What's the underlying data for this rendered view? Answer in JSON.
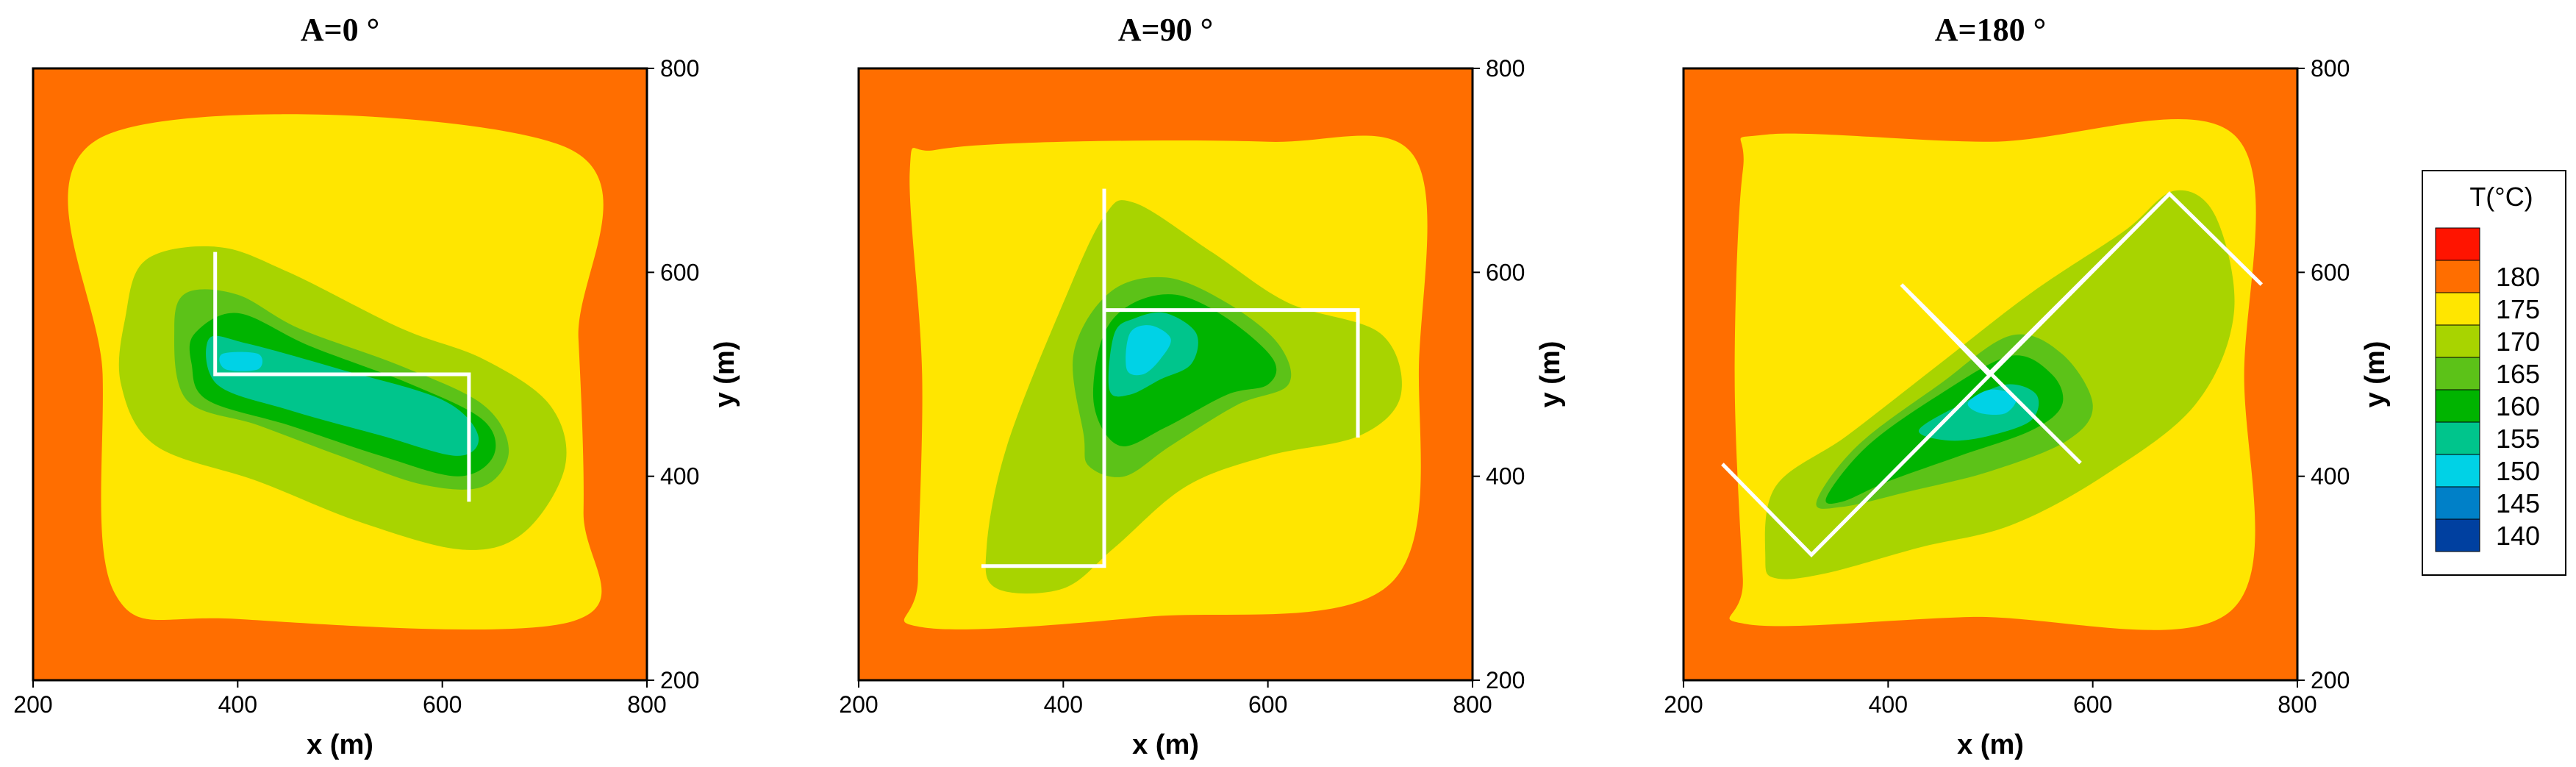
{
  "chart_data": [
    {
      "type": "heatmap",
      "subtype": "filled-contour",
      "title": "A=0 °",
      "xlabel": "x (m)",
      "ylabel": "y (m)",
      "xlim": [
        200,
        800
      ],
      "ylim": [
        200,
        800
      ],
      "x_ticks": [
        "200",
        "400",
        "600",
        "800"
      ],
      "y_ticks": [
        "200",
        "400",
        "600",
        "800"
      ],
      "y_axis_side": "right",
      "background_level": "175-180",
      "contours": [
        {
          "level": "170-175",
          "color": "#FFE600",
          "points": [
            [
              268,
              733
            ],
            [
              720,
              723
            ],
            [
              733,
              535
            ],
            [
              738,
              365
            ],
            [
              728,
              258
            ],
            [
              400,
              260
            ],
            [
              280,
              285
            ],
            [
              268,
              500
            ]
          ]
        },
        {
          "level": "165-170",
          "color": "#A8D400",
          "points": [
            [
              290,
              555
            ],
            [
              310,
              612
            ],
            [
              380,
              625
            ],
            [
              450,
              600
            ],
            [
              560,
              545
            ],
            [
              640,
              515
            ],
            [
              705,
              470
            ],
            [
              720,
              410
            ],
            [
              680,
              345
            ],
            [
              620,
              328
            ],
            [
              520,
              355
            ],
            [
              420,
              395
            ],
            [
              320,
              430
            ],
            [
              286,
              490
            ]
          ]
        },
        {
          "level": "160-165",
          "color": "#5CC218",
          "points": [
            [
              338,
              545
            ],
            [
              350,
              580
            ],
            [
              400,
              578
            ],
            [
              460,
              545
            ],
            [
              560,
              508
            ],
            [
              640,
              470
            ],
            [
              665,
              425
            ],
            [
              640,
              390
            ],
            [
              580,
              392
            ],
            [
              500,
              420
            ],
            [
              420,
              450
            ],
            [
              350,
              475
            ]
          ]
        },
        {
          "level": "155-160",
          "color": "#00B400",
          "points": [
            [
              358,
              540
            ],
            [
              400,
              560
            ],
            [
              470,
              528
            ],
            [
              570,
              490
            ],
            [
              640,
              455
            ],
            [
              650,
              420
            ],
            [
              615,
              400
            ],
            [
              540,
              420
            ],
            [
              450,
              450
            ],
            [
              370,
              475
            ],
            [
              355,
              510
            ]
          ]
        },
        {
          "level": "150-155",
          "color": "#00C58C",
          "points": [
            [
              372,
              535
            ],
            [
              410,
              530
            ],
            [
              500,
              505
            ],
            [
              600,
              475
            ],
            [
              635,
              440
            ],
            [
              615,
              420
            ],
            [
              540,
              440
            ],
            [
              450,
              465
            ],
            [
              380,
              490
            ]
          ]
        },
        {
          "level": "145-150",
          "color": "#00D2E6",
          "points": [
            [
              385,
              520
            ],
            [
              420,
              520
            ],
            [
              420,
              505
            ],
            [
              388,
              505
            ]
          ]
        }
      ],
      "well_path": [
        [
          378,
          620
        ],
        [
          378,
          500
        ],
        [
          626,
          500
        ],
        [
          626,
          375
        ]
      ],
      "well_color": "#ffffff"
    },
    {
      "type": "heatmap",
      "subtype": "filled-contour",
      "title": "A=90 °",
      "xlabel": "x (m)",
      "ylabel": "y (m)",
      "xlim": [
        200,
        800
      ],
      "ylim": [
        200,
        800
      ],
      "x_ticks": [
        "200",
        "400",
        "600",
        "800"
      ],
      "y_ticks": [
        "200",
        "400",
        "600",
        "800"
      ],
      "y_axis_side": "right",
      "background_level": "175-180",
      "contours": [
        {
          "level": "170-175",
          "color": "#FFE600",
          "points": [
            [
              275,
              720
            ],
            [
              250,
              700
            ],
            [
              262,
              500
            ],
            [
              258,
              300
            ],
            [
              262,
              252
            ],
            [
              480,
              262
            ],
            [
              720,
              295
            ],
            [
              748,
              520
            ],
            [
              742,
              715
            ],
            [
              600,
              728
            ],
            [
              400,
              728
            ]
          ]
        },
        {
          "level": "165-170",
          "color": "#A8D400",
          "points": [
            [
              335,
              290
            ],
            [
              325,
              330
            ],
            [
              345,
              430
            ],
            [
              400,
              570
            ],
            [
              440,
              655
            ],
            [
              470,
              668
            ],
            [
              545,
              620
            ],
            [
              620,
              570
            ],
            [
              710,
              540
            ],
            [
              730,
              480
            ],
            [
              690,
              440
            ],
            [
              600,
              420
            ],
            [
              520,
              390
            ],
            [
              450,
              330
            ],
            [
              400,
              290
            ]
          ]
        },
        {
          "level": "160-165",
          "color": "#5CC218",
          "points": [
            [
              420,
              440
            ],
            [
              410,
              520
            ],
            [
              445,
              580
            ],
            [
              500,
              595
            ],
            [
              560,
              570
            ],
            [
              610,
              530
            ],
            [
              620,
              490
            ],
            [
              570,
              470
            ],
            [
              505,
              430
            ],
            [
              460,
              400
            ],
            [
              425,
              410
            ]
          ]
        },
        {
          "level": "155-160",
          "color": "#00B400",
          "points": [
            [
              430,
              470
            ],
            [
              438,
              535
            ],
            [
              465,
              568
            ],
            [
              510,
              578
            ],
            [
              560,
              555
            ],
            [
              605,
              515
            ],
            [
              600,
              490
            ],
            [
              560,
              480
            ],
            [
              500,
              448
            ],
            [
              455,
              430
            ]
          ]
        },
        {
          "level": "150-155",
          "color": "#00C58C",
          "points": [
            [
              445,
              485
            ],
            [
              450,
              540
            ],
            [
              470,
              555
            ],
            [
              500,
              560
            ],
            [
              530,
              540
            ],
            [
              525,
              510
            ],
            [
              495,
              495
            ],
            [
              465,
              480
            ]
          ]
        },
        {
          "level": "145-150",
          "color": "#00D2E6",
          "points": [
            [
              462,
              505
            ],
            [
              465,
              540
            ],
            [
              485,
              548
            ],
            [
              505,
              535
            ],
            [
              495,
              515
            ],
            [
              478,
              500
            ]
          ]
        }
      ],
      "well_path": [
        [
          320,
          312
        ],
        [
          440,
          312
        ],
        [
          440,
          682
        ],
        [
          440,
          563
        ],
        [
          688,
          563
        ],
        [
          688,
          438
        ]
      ],
      "well_color": "#ffffff"
    },
    {
      "type": "heatmap",
      "subtype": "filled-contour",
      "title": "A=180 °",
      "xlabel": "x (m)",
      "ylabel": "y (m)",
      "xlim": [
        200,
        800
      ],
      "ylim": [
        200,
        800
      ],
      "x_ticks": [
        "200",
        "400",
        "600",
        "800"
      ],
      "y_ticks": [
        "200",
        "400",
        "600",
        "800"
      ],
      "y_axis_side": "right",
      "background_level": "175-180",
      "contours": [
        {
          "level": "170-175",
          "color": "#FFE600",
          "points": [
            [
              280,
              735
            ],
            [
              258,
              700
            ],
            [
              250,
              500
            ],
            [
              258,
              300
            ],
            [
              262,
              255
            ],
            [
              480,
              262
            ],
            [
              735,
              268
            ],
            [
              748,
              500
            ],
            [
              738,
              735
            ],
            [
              500,
              728
            ]
          ]
        },
        {
          "level": "165-170",
          "color": "#A8D400",
          "points": [
            [
              280,
              320
            ],
            [
              290,
              390
            ],
            [
              360,
              440
            ],
            [
              450,
              510
            ],
            [
              540,
              580
            ],
            [
              630,
              640
            ],
            [
              680,
              680
            ],
            [
              720,
              655
            ],
            [
              738,
              560
            ],
            [
              700,
              470
            ],
            [
              610,
              400
            ],
            [
              520,
              352
            ],
            [
              430,
              330
            ],
            [
              340,
              305
            ],
            [
              290,
              300
            ]
          ]
        },
        {
          "level": "160-165",
          "color": "#5CC218",
          "points": [
            [
              330,
              375
            ],
            [
              370,
              430
            ],
            [
              450,
              490
            ],
            [
              520,
              538
            ],
            [
              570,
              520
            ],
            [
              600,
              470
            ],
            [
              575,
              435
            ],
            [
              500,
              405
            ],
            [
              420,
              385
            ],
            [
              355,
              370
            ]
          ]
        },
        {
          "level": "155-160",
          "color": "#00B400",
          "points": [
            [
              340,
              380
            ],
            [
              380,
              430
            ],
            [
              450,
              480
            ],
            [
              520,
              518
            ],
            [
              560,
              500
            ],
            [
              570,
              470
            ],
            [
              540,
              445
            ],
            [
              470,
              420
            ],
            [
              400,
              395
            ],
            [
              355,
              375
            ]
          ]
        },
        {
          "level": "150-155",
          "color": "#00C58C",
          "points": [
            [
              430,
              445
            ],
            [
              470,
              470
            ],
            [
              515,
              490
            ],
            [
              545,
              480
            ],
            [
              540,
              455
            ],
            [
              500,
              440
            ],
            [
              460,
              435
            ]
          ]
        },
        {
          "level": "145-150",
          "color": "#00D2E6",
          "points": [
            [
              478,
              472
            ],
            [
              500,
              485
            ],
            [
              525,
              478
            ],
            [
              515,
              462
            ],
            [
              490,
              462
            ]
          ]
        }
      ],
      "well_path": [
        [
          238,
          412
        ],
        [
          325,
          323
        ],
        [
          675,
          677
        ],
        [
          765,
          588
        ],
        [
          675,
          677
        ],
        [
          498,
          500
        ],
        [
          413,
          588
        ],
        [
          588,
          413
        ]
      ],
      "well_color": "#ffffff"
    }
  ],
  "legend": {
    "title": "T(°C)",
    "placement": "right",
    "items": [
      {
        "label": "",
        "color": "#FF1400"
      },
      {
        "label": "180",
        "color": "#FF6E00"
      },
      {
        "label": "175",
        "color": "#FFE600"
      },
      {
        "label": "170",
        "color": "#A8D400"
      },
      {
        "label": "165",
        "color": "#5CC218"
      },
      {
        "label": "160",
        "color": "#00B400"
      },
      {
        "label": "155",
        "color": "#00C58C"
      },
      {
        "label": "150",
        "color": "#00D2E6"
      },
      {
        "label": "145",
        "color": "#0080C8"
      },
      {
        "label": "140",
        "color": "#0040A0"
      }
    ]
  },
  "colors": {
    "background": "#FF6E00",
    "frame": "#000000"
  }
}
